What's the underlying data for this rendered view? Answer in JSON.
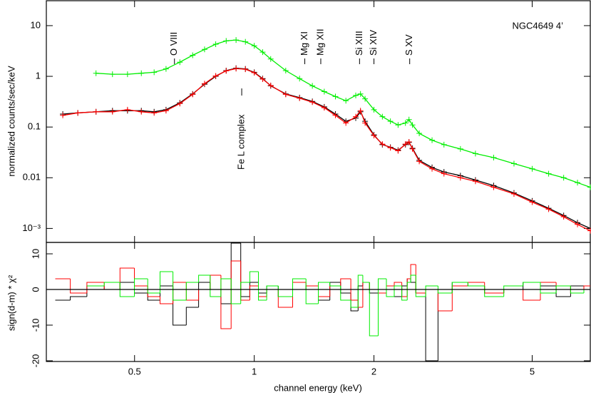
{
  "chart_data": [
    {
      "type": "line",
      "log_y": true,
      "ylabel": "normalized counts/sec/keV",
      "label": "NGC4649 4’",
      "x": [
        0.33,
        0.36,
        0.4,
        0.44,
        0.48,
        0.52,
        0.56,
        0.6,
        0.65,
        0.7,
        0.75,
        0.8,
        0.85,
        0.9,
        0.95,
        1.0,
        1.05,
        1.1,
        1.2,
        1.3,
        1.4,
        1.5,
        1.6,
        1.7,
        1.8,
        1.85,
        1.9,
        2.0,
        2.1,
        2.2,
        2.3,
        2.4,
        2.45,
        2.5,
        2.6,
        2.8,
        3.0,
        3.3,
        3.6,
        4.0,
        4.5,
        5.0,
        5.5,
        6.0,
        6.5,
        7.0
      ],
      "xlim": [
        0.3,
        7
      ],
      "ylim": [
        0.00053,
        31
      ],
      "yticks": [
        10,
        1,
        0.1,
        0.01,
        {
          "value": 0.001,
          "label": "10⁻³"
        }
      ],
      "series": [
        {
          "color": "#000000",
          "values": [
            0.18,
            0.19,
            0.2,
            0.21,
            0.21,
            0.21,
            0.2,
            0.22,
            0.3,
            0.45,
            0.7,
            1.0,
            1.3,
            1.45,
            1.4,
            1.2,
            0.9,
            0.65,
            0.45,
            0.38,
            0.32,
            0.25,
            0.18,
            0.13,
            0.15,
            0.2,
            0.13,
            0.07,
            0.045,
            0.04,
            0.035,
            0.045,
            0.05,
            0.038,
            0.022,
            0.016,
            0.013,
            0.011,
            0.009,
            0.007,
            0.005,
            0.0035,
            0.0025,
            0.0018,
            0.0013,
            0.001
          ]
        },
        {
          "color": "#ff0000",
          "values": [
            0.17,
            0.19,
            0.2,
            0.2,
            0.22,
            0.2,
            0.19,
            0.21,
            0.29,
            0.44,
            0.72,
            1.02,
            1.28,
            1.42,
            1.38,
            1.18,
            0.88,
            0.66,
            0.44,
            0.37,
            0.31,
            0.24,
            0.17,
            0.12,
            0.16,
            0.21,
            0.12,
            0.068,
            0.046,
            0.039,
            0.034,
            0.046,
            0.051,
            0.037,
            0.021,
            0.015,
            0.012,
            0.01,
            0.0085,
            0.0065,
            0.0048,
            0.0033,
            0.0024,
            0.0017,
            0.0012,
            0.0009
          ]
        },
        {
          "color": "#00ee00",
          "values": [
            null,
            null,
            1.15,
            1.1,
            1.1,
            1.15,
            1.2,
            1.4,
            1.9,
            2.6,
            3.4,
            4.3,
            5.0,
            5.2,
            4.8,
            4.0,
            3.0,
            2.2,
            1.3,
            0.9,
            0.65,
            0.5,
            0.4,
            0.33,
            0.42,
            0.45,
            0.36,
            0.22,
            0.16,
            0.13,
            0.11,
            0.12,
            0.14,
            0.11,
            0.075,
            0.055,
            0.045,
            0.037,
            0.03,
            0.025,
            0.019,
            0.015,
            0.012,
            0.01,
            0.008,
            0.0065
          ]
        }
      ],
      "annotations": [
        {
          "text": "O VIII",
          "x": 0.63
        },
        {
          "text": "Mg XI",
          "x": 1.34
        },
        {
          "text": "Mg XII",
          "x": 1.47
        },
        {
          "text": "Si XIII",
          "x": 1.84
        },
        {
          "text": "Si XIV",
          "x": 2.0
        },
        {
          "text": "S XV",
          "x": 2.46
        }
      ],
      "below_annotations": [
        {
          "text": "Fe L complex",
          "x": 0.93
        }
      ]
    },
    {
      "type": "step",
      "ylabel": "sign(d-m) * χ²",
      "xlabel": "channel energy (keV)",
      "xlim": [
        0.3,
        7
      ],
      "ylim": [
        -20.2,
        13.2
      ],
      "xticks": [
        0.5,
        1,
        2,
        5
      ],
      "yticks": [
        10,
        0,
        -10,
        -20
      ],
      "series": [
        {
          "color": "#000000",
          "values": [
            -3,
            -2,
            1,
            0,
            2,
            -1,
            -3,
            1,
            -10,
            -5,
            2,
            0,
            -4,
            13,
            -2,
            2,
            -1,
            1,
            -2,
            0,
            1,
            -3,
            2,
            -1,
            -6,
            1,
            2,
            -1,
            0,
            1,
            -2,
            1,
            3,
            2,
            -1,
            -20,
            -1,
            2,
            1,
            -1,
            0,
            2,
            1,
            -2,
            1,
            0
          ]
        },
        {
          "color": "#ff0000",
          "values": [
            3,
            -1,
            2,
            0,
            6,
            1,
            -2,
            -4,
            2,
            -3,
            0,
            4,
            -11,
            8,
            -3,
            1,
            -2,
            0,
            -5,
            2,
            1,
            -2,
            1,
            3,
            -3,
            -5,
            2,
            0,
            -1,
            1,
            2,
            -2,
            3,
            7,
            -1,
            0,
            -6,
            1,
            2,
            -1,
            0,
            -3,
            2,
            1,
            -1,
            1
          ]
        },
        {
          "color": "#00ee00",
          "values": [
            null,
            null,
            1,
            2,
            -2,
            3,
            -1,
            5,
            -3,
            2,
            4,
            -2,
            3,
            -4,
            2,
            5,
            -3,
            1,
            -2,
            3,
            -4,
            2,
            1,
            -3,
            -5,
            4,
            2,
            -13,
            3,
            -2,
            1,
            -3,
            2,
            4,
            -2,
            1,
            -1,
            2,
            1,
            -2,
            1,
            2,
            -1,
            1,
            -1,
            0
          ]
        }
      ]
    }
  ]
}
